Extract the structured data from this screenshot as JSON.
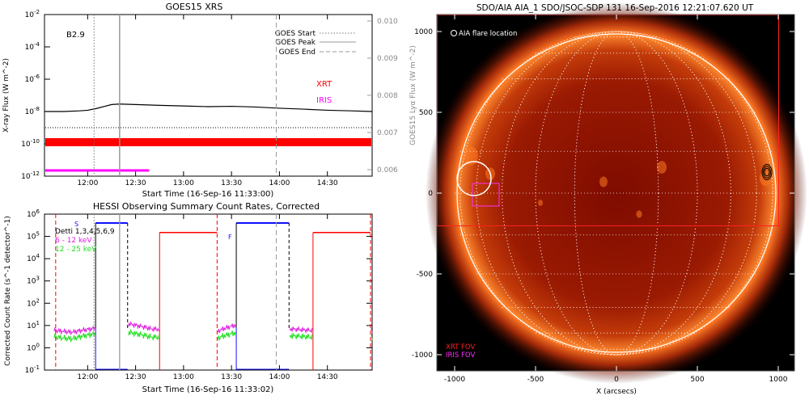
{
  "goes": {
    "title": "GOES15 XRS",
    "class_label": "B2.9",
    "legend": [
      {
        "label": "GOES Start",
        "style": "dotted"
      },
      {
        "label": "GOES Peak",
        "style": "solid"
      },
      {
        "label": "GOES End",
        "style": "dashed"
      }
    ],
    "xrt_label": "XRT",
    "iris_label": "IRIS",
    "ylabel_left": "X-ray Flux (W m^-2)",
    "ylabel_right": "GOES15 Lyα Flux (W m^-2)",
    "xlabel": "Start Time (16-Sep-16 11:33:00)",
    "xticks": [
      "12:00",
      "12:30",
      "13:00",
      "13:30",
      "14:00",
      "14:30"
    ],
    "yticks_left": [
      "10^-12",
      "10^-10",
      "10^-8",
      "10^-6",
      "10^-4",
      "10^-2"
    ],
    "yticks_right": [
      "0.006",
      "0.007",
      "0.008",
      "0.009",
      "0.010"
    ]
  },
  "hessi": {
    "title": "HESSI Observing Summary Count Rates, Corrected",
    "legend": [
      {
        "label": "Detti 1,3,4,5,6,9",
        "color": "#000000"
      },
      {
        "label": "6 - 12 keV",
        "color": "#e020e0"
      },
      {
        "label": "12 - 25 keV",
        "color": "#20e020"
      }
    ],
    "flag_s": "S",
    "flag_f": "F",
    "ylabel": "Corrected Count Rate (s^-1 detector^-1)",
    "xlabel": "Start Time (16-Sep-16 11:33:02)",
    "xticks": [
      "12:00",
      "12:30",
      "13:00",
      "13:30",
      "14:00",
      "14:30"
    ],
    "yticks": [
      "10^-1",
      "10^0",
      "10^1",
      "10^2",
      "10^3",
      "10^4",
      "10^5",
      "10^6"
    ]
  },
  "aia": {
    "title": "SDO/AIA AIA_1 SDO/JSOC-SDP 131 16-Sep-2016 12:21:07.620 UT",
    "flare_location_label": "AIA flare location",
    "xrt_fov_label": "XRT FOV",
    "iris_fov_label": "IRIS FOV",
    "xlabel": "X (arcsecs)",
    "xticks": [
      "-1000",
      "-500",
      "0",
      "500",
      "1000"
    ],
    "yticks": [
      "1000",
      "500",
      "0",
      "-500",
      "-1000"
    ]
  },
  "chart_data": [
    {
      "type": "line",
      "panel": "goes",
      "title": "GOES15 XRS",
      "xlabel": "Start Time (16-Sep-16 11:33:00)",
      "ylabel": "X-ray Flux (W m^-2)",
      "yscale": "log",
      "ylim": [
        1e-12,
        0.01
      ],
      "xlim": [
        "11:33",
        "14:58"
      ],
      "series": [
        {
          "name": "",
          "color": "#000000",
          "x": [
            "11:33",
            "11:45",
            "11:55",
            "12:00",
            "12:05",
            "12:10",
            "12:15",
            "12:20",
            "12:30",
            "12:45",
            "13:00",
            "13:15",
            "13:30",
            "13:45",
            "14:00",
            "14:15",
            "14:30",
            "14:45",
            "14:58"
          ],
          "y": [
            1e-08,
            1e-08,
            1.1e-08,
            1.2e-08,
            1.5e-08,
            2e-08,
            2.7e-08,
            2.9e-08,
            2.7e-08,
            2.4e-08,
            2.2e-08,
            2e-08,
            2.1e-08,
            1.9e-08,
            1.6e-08,
            1.4e-08,
            1.2e-08,
            1.1e-08,
            1e-08
          ]
        }
      ],
      "events": {
        "goes_start": "12:04",
        "goes_peak": "12:20",
        "goes_end": "13:58"
      },
      "xrt_coverage": [
        "11:33",
        "14:58"
      ],
      "iris_coverage": [
        "11:33",
        "12:38"
      ]
    },
    {
      "type": "line",
      "panel": "hessi",
      "title": "HESSI Observing Summary Count Rates, Corrected",
      "xlabel": "Start Time (16-Sep-16 11:33:02)",
      "ylabel": "Corrected Count Rate (s^-1 detector^-1)",
      "yscale": "log",
      "ylim": [
        0.1,
        1000000.0
      ],
      "xlim": [
        "11:33",
        "14:58"
      ],
      "series": [
        {
          "name": "6 - 12 keV",
          "color": "#e020e0",
          "x": [
            "11:39",
            "11:50",
            "12:02",
            "12:25",
            "12:40",
            "13:00",
            "13:20",
            "13:34",
            "14:07",
            "14:20",
            "14:40",
            "14:58"
          ],
          "y": [
            6,
            5,
            7,
            12,
            7,
            6,
            5,
            11,
            7,
            6,
            6,
            6
          ]
        },
        {
          "name": "12 - 25 keV",
          "color": "#20e020",
          "x": [
            "11:39",
            "11:50",
            "12:02",
            "12:25",
            "12:40",
            "13:00",
            "13:20",
            "13:34",
            "14:07",
            "14:20",
            "14:40",
            "14:58"
          ],
          "y": [
            3,
            2.5,
            4,
            5,
            3,
            3,
            2.5,
            5,
            3.5,
            3,
            3,
            3
          ]
        }
      ],
      "saa_intervals": [
        [
          "12:05",
          "12:25"
        ],
        [
          "13:33",
          "14:06"
        ]
      ],
      "night_intervals": [
        [
          "12:45",
          "13:21"
        ],
        [
          "14:21",
          "14:57"
        ]
      ]
    }
  ],
  "colors": {
    "sun_core": "#9b1400",
    "sun_limb": "#ff6a20",
    "xrt": "#ff0000",
    "iris": "#ff00ff",
    "hessi_blue": "#1010ff"
  }
}
